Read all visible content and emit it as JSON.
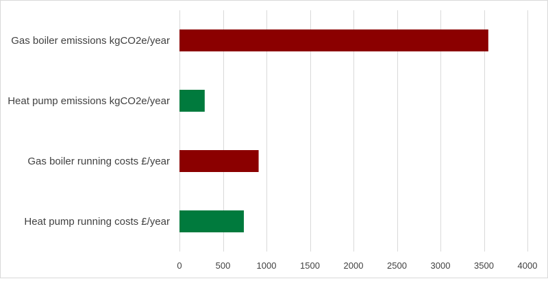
{
  "chart_data": {
    "type": "bar",
    "orientation": "horizontal",
    "categories": [
      "Gas boiler emissions kgCO2e/year",
      "Heat pump emissions kgCO2e/year",
      "Gas boiler running costs £/year",
      "Heat pump running costs £/year"
    ],
    "values": [
      3550,
      290,
      910,
      740
    ],
    "colors": [
      "#8b0000",
      "#007a3d",
      "#8b0000",
      "#007a3d"
    ],
    "title": "",
    "xlabel": "",
    "ylabel": "",
    "xlim": [
      0,
      4000
    ],
    "xticks": [
      0,
      500,
      1000,
      1500,
      2000,
      2500,
      3000,
      3500,
      4000
    ],
    "xtick_labels": [
      "0",
      "500",
      "1000",
      "1500",
      "2000",
      "2500",
      "3000",
      "3500",
      "4000"
    ],
    "grid": "vertical",
    "legend": "none"
  }
}
